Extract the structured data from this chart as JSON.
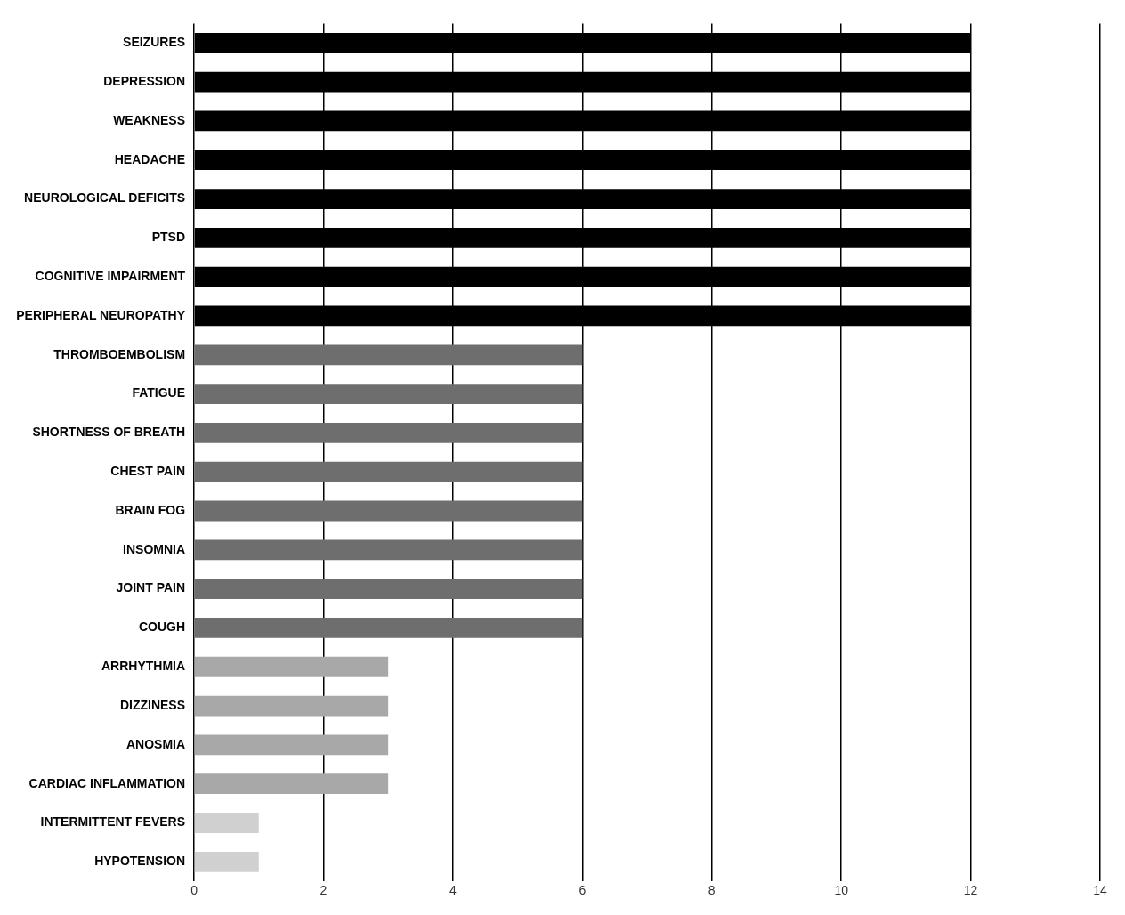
{
  "chart_data": {
    "type": "bar",
    "orientation": "horizontal",
    "categories": [
      "SEIZURES",
      "DEPRESSION",
      "WEAKNESS",
      "HEADACHE",
      "NEUROLOGICAL DEFICITS",
      "PTSD",
      "COGNITIVE IMPAIRMENT",
      "PERIPHERAL NEUROPATHY",
      "THROMBOEMBOLISM",
      "FATIGUE",
      "SHORTNESS OF BREATH",
      "CHEST PAIN",
      "BRAIN FOG",
      "INSOMNIA",
      "JOINT PAIN",
      "COUGH",
      "ARRHYTHMIA",
      "DIZZINESS",
      "ANOSMIA",
      "CARDIAC INFLAMMATION",
      "INTERMITTENT FEVERS",
      "HYPOTENSION"
    ],
    "values": [
      12,
      12,
      12,
      12,
      12,
      12,
      12,
      12,
      6,
      6,
      6,
      6,
      6,
      6,
      6,
      6,
      3,
      3,
      3,
      3,
      1,
      1
    ],
    "colors": [
      "#000000",
      "#000000",
      "#000000",
      "#000000",
      "#000000",
      "#000000",
      "#000000",
      "#000000",
      "#6e6e6e",
      "#6e6e6e",
      "#6e6e6e",
      "#6e6e6e",
      "#6e6e6e",
      "#6e6e6e",
      "#6e6e6e",
      "#6e6e6e",
      "#a8a8a8",
      "#a8a8a8",
      "#a8a8a8",
      "#a8a8a8",
      "#d0d0d0",
      "#d0d0d0"
    ],
    "xlim": [
      0,
      14
    ],
    "xticks": [
      0,
      2,
      4,
      6,
      8,
      10,
      12,
      14
    ],
    "grid": "x"
  }
}
